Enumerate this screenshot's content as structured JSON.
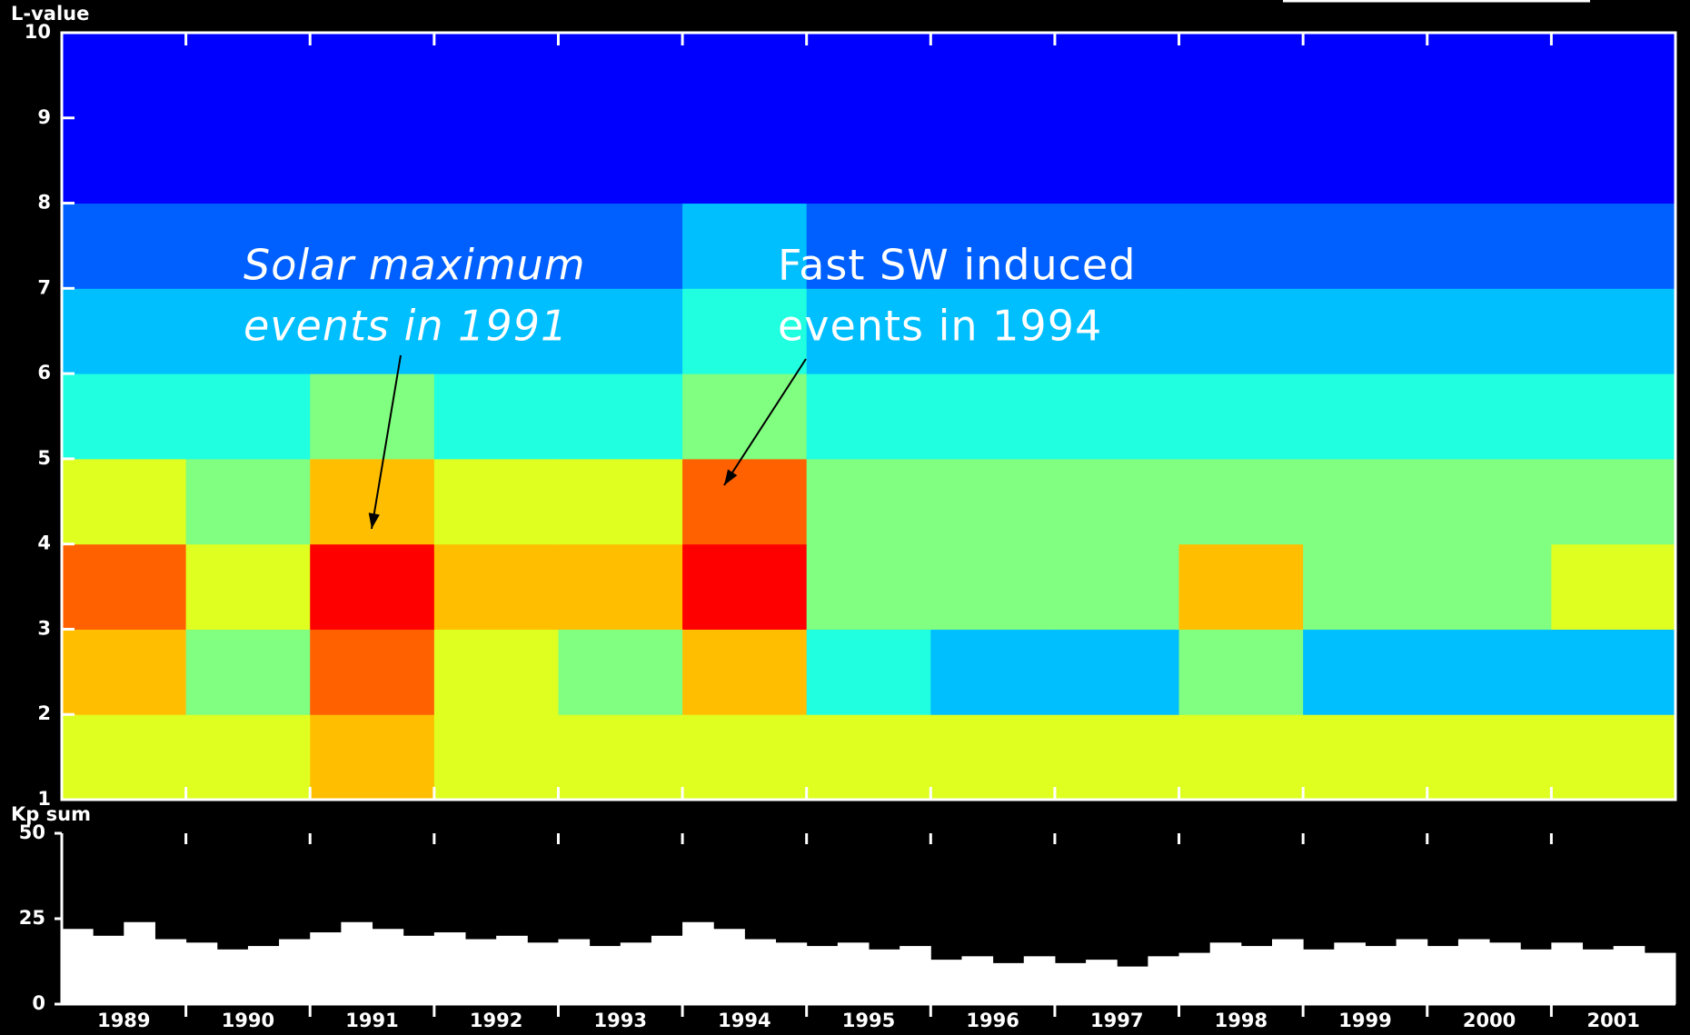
{
  "chart_data": [
    {
      "type": "heatmap",
      "ylabel": "L-value",
      "xlim": [
        1989,
        2002
      ],
      "ylim": [
        1,
        10
      ],
      "yticks": [
        1,
        2,
        3,
        4,
        5,
        6,
        7,
        8,
        9,
        10
      ],
      "xticks": [
        1990,
        1991,
        1992,
        1993,
        1994,
        1995,
        1996,
        1997,
        1998,
        1999,
        2000,
        2001
      ],
      "bins": [
        1989,
        1990,
        1991,
        1992,
        1993,
        1994,
        1995,
        1996,
        1997,
        1998,
        1999,
        2000,
        2001,
        2002
      ],
      "ybins": [
        1,
        2,
        3,
        4,
        5,
        6,
        7,
        8,
        9,
        10
      ],
      "zlim": [
        0,
        10
      ],
      "colorscale": [
        "#00008f",
        "#0000ff",
        "#0060ff",
        "#00bfff",
        "#20ffdf",
        "#80ff80",
        "#dfff20",
        "#ffbf00",
        "#ff6000",
        "#ff0000",
        "#8f0000"
      ],
      "values": [
        [
          6,
          6,
          7,
          6,
          6,
          6,
          6,
          6,
          6,
          6,
          6,
          6,
          6
        ],
        [
          7,
          5,
          8,
          6,
          5,
          7,
          4,
          3,
          3,
          5,
          3,
          3,
          3
        ],
        [
          8,
          6,
          9,
          7,
          7,
          9,
          5,
          5,
          5,
          7,
          5,
          5,
          6
        ],
        [
          6,
          5,
          7,
          6,
          6,
          8,
          5,
          5,
          5,
          5,
          5,
          5,
          5
        ],
        [
          4,
          4,
          5,
          4,
          4,
          5,
          4,
          4,
          4,
          4,
          4,
          4,
          4
        ],
        [
          3,
          3,
          3,
          3,
          3,
          4,
          3,
          3,
          3,
          3,
          3,
          3,
          3
        ],
        [
          2,
          2,
          2,
          2,
          2,
          3,
          2,
          2,
          2,
          2,
          2,
          2,
          2
        ],
        [
          1,
          1,
          1,
          1,
          1,
          1,
          1,
          1,
          1,
          1,
          1,
          1,
          1
        ],
        [
          1,
          1,
          1,
          1,
          1,
          1,
          1,
          1,
          1,
          1,
          1,
          1,
          1
        ]
      ],
      "annotations": [
        {
          "lines": [
            "Solar maximum",
            "events in 1991"
          ]
        },
        {
          "lines": [
            "Fast SW induced",
            "events in 1994"
          ]
        }
      ]
    },
    {
      "type": "bar",
      "ylabel": "Kp sum",
      "color": "#ffffff",
      "xlim": [
        1989,
        2002
      ],
      "ylim": [
        0,
        50
      ],
      "yticks": [
        0,
        25,
        50
      ],
      "xminor": [
        1990,
        1991,
        1992,
        1993,
        1994,
        1995,
        1996,
        1997,
        1998,
        1999,
        2000,
        2001
      ],
      "xticks": [
        {
          "value": 1989.5,
          "label": "1989"
        },
        {
          "value": 1990.5,
          "label": "1990"
        },
        {
          "value": 1991.5,
          "label": "1991"
        },
        {
          "value": 1992.5,
          "label": "1992"
        },
        {
          "value": 1993.5,
          "label": "1993"
        },
        {
          "value": 1994.5,
          "label": "1994"
        },
        {
          "value": 1995.5,
          "label": "1995"
        },
        {
          "value": 1996.5,
          "label": "1996"
        },
        {
          "value": 1997.5,
          "label": "1997"
        },
        {
          "value": 1998.5,
          "label": "1998"
        },
        {
          "value": 1999.5,
          "label": "1999"
        },
        {
          "value": 2000.5,
          "label": "2000"
        },
        {
          "value": 2001.5,
          "label": "2001"
        }
      ],
      "x": [
        1989.125,
        1989.375,
        1989.625,
        1989.875,
        1990.125,
        1990.375,
        1990.625,
        1990.875,
        1991.125,
        1991.375,
        1991.625,
        1991.875,
        1992.125,
        1992.375,
        1992.625,
        1992.875,
        1993.125,
        1993.375,
        1993.625,
        1993.875,
        1994.125,
        1994.375,
        1994.625,
        1994.875,
        1995.125,
        1995.375,
        1995.625,
        1995.875,
        1996.125,
        1996.375,
        1996.625,
        1996.875,
        1997.125,
        1997.375,
        1997.625,
        1997.875,
        1998.125,
        1998.375,
        1998.625,
        1998.875,
        1999.125,
        1999.375,
        1999.625,
        1999.875,
        2000.125,
        2000.375,
        2000.625,
        2000.875,
        2001.125,
        2001.375,
        2001.625,
        2001.875
      ],
      "values": [
        22,
        20,
        24,
        19,
        18,
        16,
        17,
        19,
        21,
        24,
        22,
        20,
        21,
        19,
        20,
        18,
        19,
        17,
        18,
        20,
        24,
        22,
        19,
        18,
        17,
        18,
        16,
        17,
        13,
        14,
        12,
        14,
        12,
        13,
        11,
        14,
        15,
        18,
        17,
        19,
        16,
        18,
        17,
        19,
        17,
        19,
        18,
        16,
        18,
        16,
        17,
        15
      ]
    }
  ]
}
